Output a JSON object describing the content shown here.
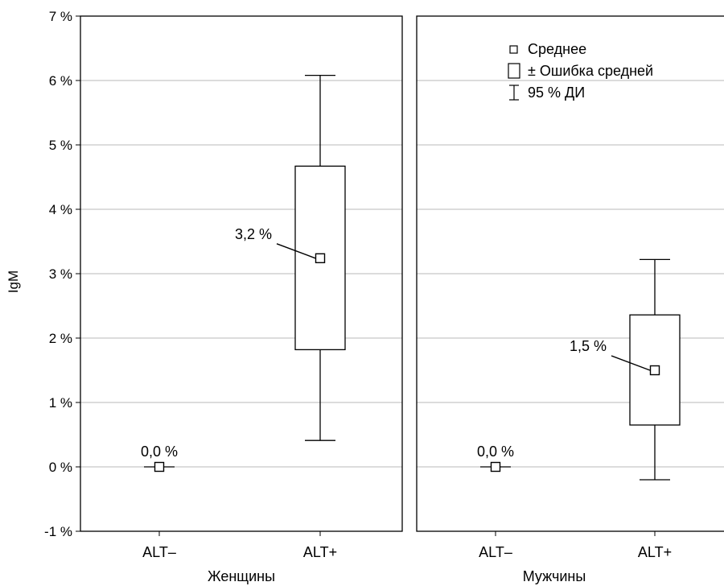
{
  "chart_data": {
    "type": "box",
    "ylabel": "IgM",
    "ylim": [
      -1,
      7
    ],
    "yticks": [
      -1,
      0,
      1,
      2,
      3,
      4,
      5,
      6,
      7
    ],
    "ytick_labels": [
      "-1 %",
      "0 %",
      "1 %",
      "2 %",
      "3 %",
      "4 %",
      "5 %",
      "6 %",
      "7 %"
    ],
    "grid": true,
    "legend": {
      "position": "top-right",
      "items": [
        {
          "symbol": "mean",
          "label": "Среднее"
        },
        {
          "symbol": "box",
          "label": "± Ошибка средней"
        },
        {
          "symbol": "whisker",
          "label": "95 % ДИ"
        }
      ]
    },
    "panels": [
      {
        "title": "Женщины",
        "categories": [
          "ALT–",
          "ALT+"
        ],
        "groups": [
          {
            "category": "ALT–",
            "mean": 0.0,
            "se_low": 0.0,
            "se_high": 0.0,
            "ci_low": 0.0,
            "ci_high": 0.0,
            "label": "0,0 %"
          },
          {
            "category": "ALT+",
            "mean": 3.24,
            "se_low": 1.82,
            "se_high": 4.67,
            "ci_low": 0.41,
            "ci_high": 6.08,
            "label": "3,2 %"
          }
        ]
      },
      {
        "title": "Мужчины",
        "categories": [
          "ALT–",
          "ALT+"
        ],
        "groups": [
          {
            "category": "ALT–",
            "mean": 0.0,
            "se_low": 0.0,
            "se_high": 0.0,
            "ci_low": 0.0,
            "ci_high": 0.0,
            "label": "0,0 %"
          },
          {
            "category": "ALT+",
            "mean": 1.5,
            "se_low": 0.65,
            "se_high": 2.36,
            "ci_low": -0.2,
            "ci_high": 3.22,
            "label": "1,5 %"
          }
        ]
      }
    ]
  }
}
